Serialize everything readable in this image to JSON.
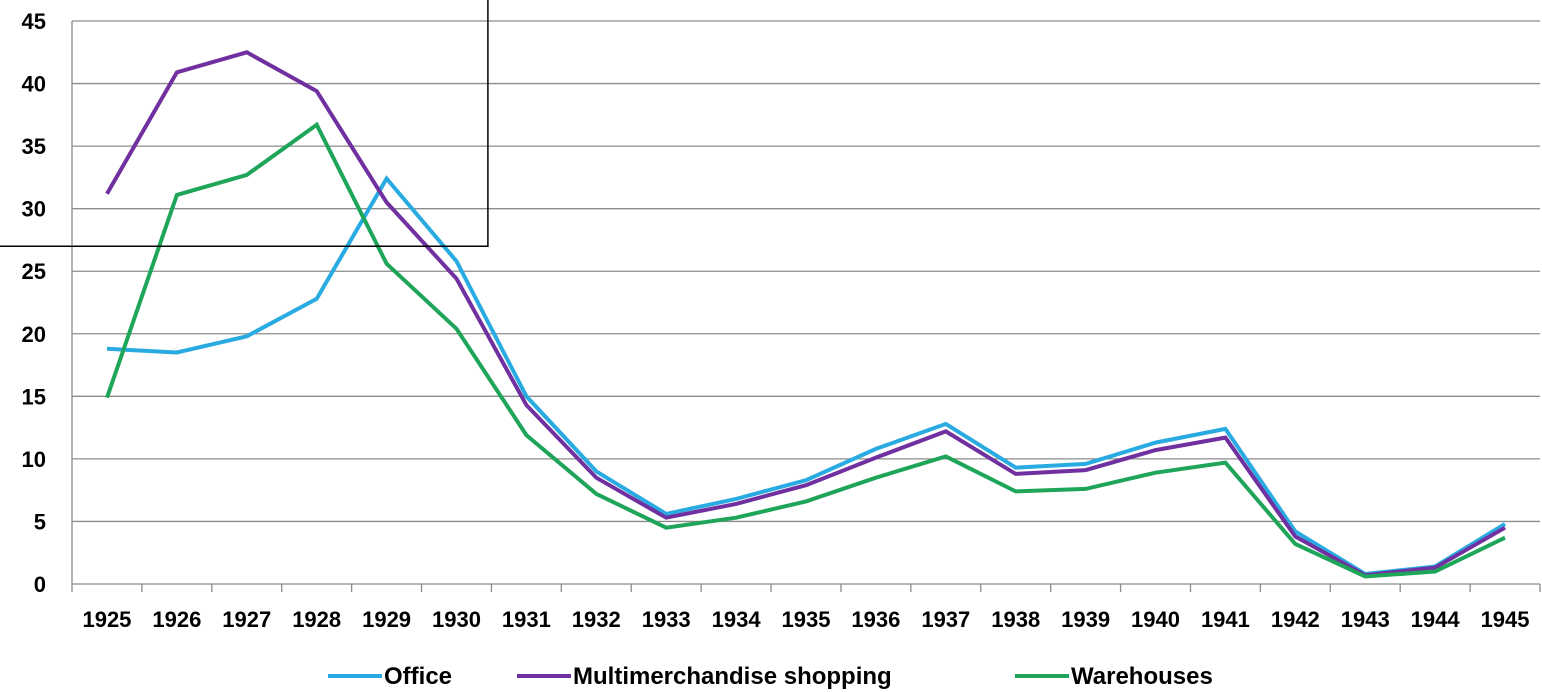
{
  "chart_data": {
    "type": "line",
    "x": [
      "1925",
      "1926",
      "1927",
      "1928",
      "1929",
      "1930",
      "1931",
      "1932",
      "1933",
      "1934",
      "1935",
      "1936",
      "1937",
      "1938",
      "1939",
      "1940",
      "1941",
      "1942",
      "1943",
      "1944",
      "1945"
    ],
    "series": [
      {
        "name": "Office",
        "color": "#29abe2",
        "values": [
          18.8,
          18.5,
          19.8,
          22.8,
          32.4,
          25.8,
          15.0,
          9.0,
          5.6,
          6.8,
          8.3,
          10.8,
          12.8,
          9.3,
          9.6,
          11.3,
          12.4,
          4.2,
          0.8,
          1.4,
          4.8
        ]
      },
      {
        "name": "Multimerchandise shopping",
        "color": "#7030a0",
        "values": [
          31.2,
          40.9,
          42.5,
          39.4,
          30.5,
          24.4,
          14.3,
          8.5,
          5.3,
          6.4,
          7.9,
          10.1,
          12.2,
          8.8,
          9.1,
          10.7,
          11.7,
          3.8,
          0.7,
          1.3,
          4.5
        ]
      },
      {
        "name": "Warehouses",
        "color": "#1fa55a",
        "values": [
          14.9,
          31.1,
          32.7,
          36.7,
          25.6,
          20.4,
          11.9,
          7.2,
          4.5,
          5.3,
          6.6,
          8.5,
          10.2,
          7.4,
          7.6,
          8.9,
          9.7,
          3.2,
          0.6,
          1.0,
          3.7
        ]
      }
    ],
    "ylim": [
      0,
      45
    ],
    "yticks": [
      "0",
      "5",
      "10",
      "15",
      "20",
      "25",
      "30",
      "35",
      "40",
      "45"
    ],
    "grid": true,
    "legend_position": "bottom"
  }
}
